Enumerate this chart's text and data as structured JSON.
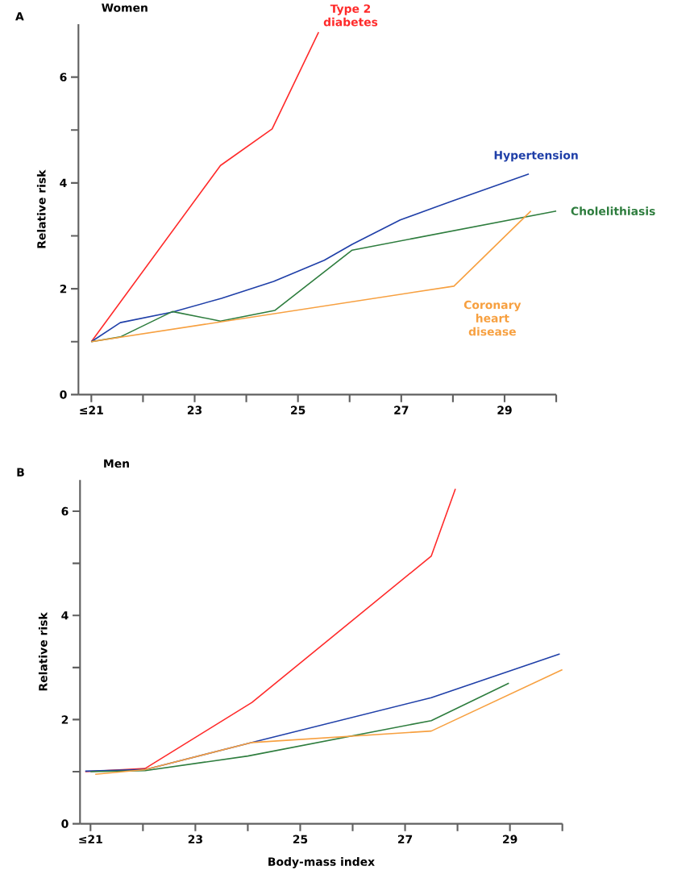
{
  "chart_data": [
    {
      "type": "line",
      "title": "Women",
      "ylabel": "Relative risk",
      "annotations": [
        "A"
      ],
      "xlim": [
        20.75,
        30
      ],
      "ylim": [
        0,
        7
      ],
      "xticks": [
        {
          "value": 21,
          "label": "≤21"
        },
        {
          "value": 22,
          "label": null
        },
        23,
        {
          "value": 24,
          "label": null
        },
        25,
        {
          "value": 26,
          "label": null
        },
        27,
        {
          "value": 28,
          "label": null
        },
        29,
        {
          "value": 30,
          "label": null
        }
      ],
      "yticks": [
        0,
        {
          "value": 1,
          "label": null
        },
        2,
        {
          "value": 3,
          "label": null
        },
        4,
        {
          "value": 5,
          "label": null
        },
        6
      ],
      "series": [
        {
          "name": "Type 2 diabetes",
          "color": "#ff2a2a",
          "x": [
            21,
            23.5,
            24.5,
            25.4
          ],
          "values": [
            1.0,
            4.33,
            5.02,
            6.85
          ]
        },
        {
          "name": "Hypertension",
          "color": "#1f3fa8",
          "x": [
            21,
            21.56,
            22.57,
            23.52,
            24.53,
            25.51,
            26.05,
            26.98,
            27.99,
            29.47
          ],
          "values": [
            1.0,
            1.36,
            1.56,
            1.82,
            2.14,
            2.54,
            2.84,
            3.3,
            3.66,
            4.17
          ]
        },
        {
          "name": "Cholelithiasis",
          "color": "#2e7d3e",
          "x": [
            21,
            21.56,
            22.57,
            23.5,
            24.55,
            26.05,
            30.0
          ],
          "values": [
            1.0,
            1.09,
            1.57,
            1.39,
            1.59,
            2.73,
            3.47
          ]
        },
        {
          "name": "Coronary heart disease",
          "color": "#f7a040",
          "x": [
            21,
            28.02,
            29.51
          ],
          "values": [
            1.0,
            2.05,
            3.47
          ]
        }
      ]
    },
    {
      "type": "line",
      "title": "Men",
      "xlabel": "Body-mass index",
      "ylabel": "Relative risk",
      "annotations": [
        "B"
      ],
      "xlim": [
        20.8,
        30
      ],
      "ylim": [
        0,
        6.6
      ],
      "xticks": [
        {
          "value": 21,
          "label": "≤21"
        },
        {
          "value": 22,
          "label": null
        },
        23,
        {
          "value": 24,
          "label": null
        },
        25,
        {
          "value": 26,
          "label": null
        },
        27,
        {
          "value": 28,
          "label": null
        },
        29,
        {
          "value": 30,
          "label": null
        }
      ],
      "yticks": [
        0,
        {
          "value": 1,
          "label": null
        },
        2,
        {
          "value": 3,
          "label": null
        },
        4,
        {
          "value": 5,
          "label": null
        },
        6
      ],
      "series": [
        {
          "color": "#ff2a2a",
          "x": [
            20.9,
            22.04,
            24.08,
            27.5,
            27.96
          ],
          "values": [
            1.0,
            1.06,
            2.33,
            5.14,
            6.43
          ]
        },
        {
          "color": "#1f3fa8",
          "x": [
            20.9,
            22.04,
            24.08,
            27.5,
            29.95
          ],
          "values": [
            1.01,
            1.04,
            1.56,
            2.42,
            3.26
          ]
        },
        {
          "color": "#2e7d3e",
          "x": [
            21.0,
            22.04,
            24.0,
            27.5,
            28.98
          ],
          "values": [
            1.0,
            1.02,
            1.3,
            1.98,
            2.7
          ]
        },
        {
          "color": "#f7a040",
          "x": [
            21.09,
            22.04,
            24.08,
            27.5,
            30.0
          ],
          "values": [
            0.95,
            1.04,
            1.56,
            1.78,
            2.96
          ]
        }
      ]
    }
  ]
}
